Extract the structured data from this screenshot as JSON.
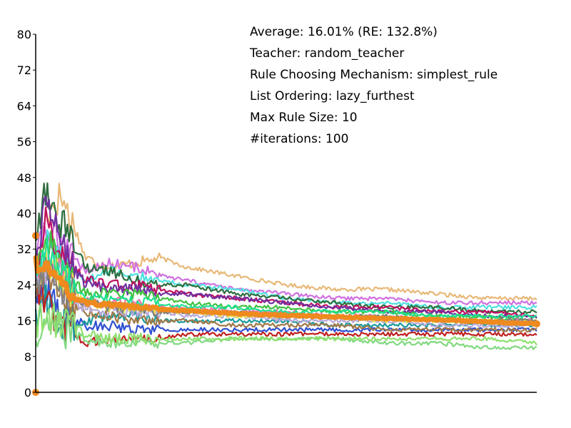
{
  "chart_data": {
    "type": "line",
    "title": "",
    "xlabel": "",
    "ylabel": "",
    "ylim": [
      0,
      80
    ],
    "x_range": [
      0,
      100
    ],
    "yticks": [
      "0",
      "8",
      "16",
      "24",
      "32",
      "40",
      "48",
      "56",
      "64",
      "72",
      "80"
    ],
    "grid": false,
    "legend": "none",
    "annotations": [
      "Average: 16.01% (RE: 132.8%)",
      "Teacher: random_teacher",
      "Rule Choosing Mechanism: simplest_rule",
      "List Ordering: lazy_furthest",
      "Max Rule Size: 10",
      "#iterations: 100"
    ],
    "average_series": {
      "color": "#ee8a1e",
      "x": [
        0,
        1,
        2,
        3,
        4,
        5,
        6,
        8,
        10,
        12,
        15,
        20,
        25,
        30,
        40,
        50,
        60,
        70,
        80,
        90,
        100
      ],
      "y": [
        29,
        27,
        28,
        27,
        26,
        25,
        23,
        21,
        20,
        19.8,
        19.5,
        19,
        18.6,
        18.2,
        17.6,
        17.2,
        16.8,
        16.5,
        16.2,
        15.8,
        15.3
      ]
    },
    "series": [
      {
        "color": "#e8b878",
        "x": [
          0,
          2,
          5,
          8,
          10,
          15,
          20,
          25,
          30,
          40,
          50,
          60,
          70,
          80,
          90,
          100
        ],
        "y": [
          26,
          40,
          44,
          36,
          30,
          28,
          29,
          30,
          28,
          26,
          24,
          23,
          23,
          22,
          21,
          21
        ]
      },
      {
        "color": "#d070e0",
        "x": [
          0,
          2,
          5,
          8,
          10,
          15,
          20,
          25,
          30,
          40,
          50,
          60,
          70,
          80,
          90,
          100
        ],
        "y": [
          30,
          36,
          34,
          30,
          27,
          29,
          28,
          26,
          25,
          23,
          22,
          21,
          21,
          20,
          20,
          20
        ]
      },
      {
        "color": "#50e0e0",
        "x": [
          0,
          2,
          5,
          8,
          10,
          15,
          20,
          25,
          30,
          40,
          50,
          60,
          70,
          80,
          90,
          100
        ],
        "y": [
          28,
          33,
          30,
          27,
          25,
          27,
          26,
          25,
          24,
          23,
          21,
          20,
          20,
          19,
          19,
          19
        ]
      },
      {
        "color": "#2e6e3e",
        "x": [
          0,
          2,
          5,
          8,
          10,
          15,
          20,
          25,
          30,
          40,
          50,
          60,
          70,
          80,
          90,
          100
        ],
        "y": [
          35,
          45,
          38,
          32,
          28,
          27,
          25,
          24,
          24,
          22,
          21,
          20,
          19,
          19,
          18,
          18
        ]
      },
      {
        "color": "#c01060",
        "x": [
          0,
          2,
          5,
          8,
          10,
          15,
          20,
          25,
          30,
          40,
          50,
          60,
          70,
          80,
          90,
          100
        ],
        "y": [
          26,
          38,
          31,
          28,
          25,
          24,
          24,
          23,
          22,
          21,
          20,
          19,
          19,
          18,
          18,
          17
        ]
      },
      {
        "color": "#7030a0",
        "x": [
          0,
          2,
          5,
          8,
          10,
          15,
          20,
          25,
          30,
          40,
          50,
          60,
          70,
          80,
          90,
          100
        ],
        "y": [
          27,
          42,
          33,
          27,
          24,
          23,
          23,
          22,
          22,
          21,
          20,
          19,
          18,
          18,
          17,
          17
        ]
      },
      {
        "color": "#40c040",
        "x": [
          0,
          2,
          5,
          8,
          10,
          15,
          20,
          25,
          30,
          40,
          50,
          60,
          70,
          80,
          90,
          100
        ],
        "y": [
          24,
          34,
          28,
          24,
          22,
          22,
          22,
          21,
          20,
          19,
          19,
          18,
          18,
          17,
          17,
          16
        ]
      },
      {
        "color": "#f070b0",
        "x": [
          0,
          2,
          5,
          8,
          10,
          15,
          20,
          25,
          30,
          40,
          50,
          60,
          70,
          80,
          90,
          100
        ],
        "y": [
          20,
          30,
          26,
          22,
          20,
          20,
          20,
          19,
          19,
          18,
          18,
          17,
          17,
          16,
          16,
          16
        ]
      },
      {
        "color": "#3050d0",
        "x": [
          0,
          2,
          5,
          8,
          10,
          15,
          20,
          25,
          30,
          40,
          50,
          60,
          70,
          80,
          90,
          100
        ],
        "y": [
          22,
          24,
          18,
          16,
          15,
          15,
          14,
          14,
          14,
          14,
          14,
          14,
          14,
          14,
          14,
          14
        ]
      },
      {
        "color": "#1a9a9a",
        "x": [
          0,
          2,
          5,
          8,
          10,
          15,
          20,
          25,
          30,
          40,
          50,
          60,
          70,
          80,
          90,
          100
        ],
        "y": [
          18,
          22,
          16,
          15,
          16,
          17,
          17,
          16,
          16,
          16,
          16,
          15,
          15,
          15,
          15,
          15
        ]
      },
      {
        "color": "#a07848",
        "x": [
          0,
          2,
          5,
          8,
          10,
          15,
          20,
          25,
          30,
          40,
          50,
          60,
          70,
          80,
          90,
          100
        ],
        "y": [
          20,
          26,
          22,
          19,
          18,
          17,
          16,
          16,
          16,
          15,
          15,
          15,
          14,
          14,
          14,
          14
        ]
      },
      {
        "color": "#c02020",
        "x": [
          0,
          2,
          5,
          8,
          10,
          15,
          20,
          25,
          30,
          40,
          50,
          60,
          70,
          80,
          90,
          100
        ],
        "y": [
          25,
          20,
          15,
          13,
          11,
          12,
          12,
          12,
          13,
          13,
          13,
          13,
          13,
          13,
          13,
          13
        ]
      },
      {
        "color": "#80d880",
        "x": [
          0,
          2,
          5,
          8,
          10,
          15,
          20,
          25,
          30,
          40,
          50,
          60,
          70,
          80,
          90,
          100
        ],
        "y": [
          10,
          16,
          14,
          13,
          12,
          11,
          11,
          11,
          11,
          12,
          12,
          12,
          11,
          11,
          10,
          10
        ]
      },
      {
        "color": "#90e070",
        "x": [
          0,
          2,
          5,
          8,
          10,
          15,
          20,
          25,
          30,
          40,
          50,
          60,
          70,
          80,
          90,
          100
        ],
        "y": [
          14,
          18,
          15,
          14,
          13,
          12,
          12,
          12,
          12,
          12,
          12,
          12,
          12,
          12,
          12,
          11
        ]
      },
      {
        "color": "#b8a8d8",
        "x": [
          0,
          2,
          5,
          8,
          10,
          15,
          20,
          25,
          30,
          40,
          50,
          60,
          70,
          80,
          90,
          100
        ],
        "y": [
          22,
          28,
          23,
          20,
          19,
          18,
          18,
          18,
          17,
          17,
          16,
          16,
          16,
          15,
          15,
          15
        ]
      },
      {
        "color": "#e8e050",
        "x": [
          0,
          2,
          5,
          8,
          10,
          15,
          20,
          25,
          30,
          40,
          50,
          60,
          70,
          80,
          90,
          100
        ],
        "y": [
          24,
          30,
          25,
          22,
          20,
          19,
          19,
          18,
          18,
          17,
          17,
          17,
          16,
          16,
          16,
          16
        ]
      },
      {
        "color": "#808080",
        "x": [
          0,
          2,
          5,
          8,
          10,
          15,
          20,
          25,
          30,
          40,
          50,
          60,
          70,
          80,
          90,
          100
        ],
        "y": [
          23,
          29,
          24,
          21,
          20,
          19,
          19,
          18,
          18,
          18,
          17,
          17,
          17,
          16,
          16,
          16
        ]
      },
      {
        "color": "#20e090",
        "x": [
          0,
          2,
          5,
          8,
          10,
          15,
          20,
          25,
          30,
          40,
          50,
          60,
          70,
          80,
          90,
          100
        ],
        "y": [
          26,
          32,
          27,
          23,
          21,
          21,
          20,
          20,
          19,
          19,
          18,
          18,
          18,
          17,
          17,
          17
        ]
      }
    ]
  }
}
